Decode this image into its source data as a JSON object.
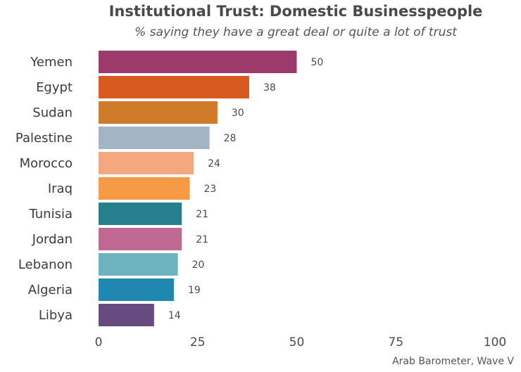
{
  "chart_data": {
    "type": "bar",
    "orientation": "horizontal",
    "title": "Institutional Trust: Domestic Businesspeople",
    "subtitle": "% saying they have a great deal or quite a lot of trust",
    "caption": "Arab Barometer, Wave V",
    "categories": [
      "Yemen",
      "Egypt",
      "Sudan",
      "Palestine",
      "Morocco",
      "Iraq",
      "Tunisia",
      "Jordan",
      "Lebanon",
      "Algeria",
      "Libya"
    ],
    "values": [
      50,
      38,
      30,
      28,
      24,
      23,
      21,
      21,
      20,
      19,
      14
    ],
    "colors": [
      "#9b3a6b",
      "#d95a1e",
      "#cf7b2a",
      "#a3b5c5",
      "#f3a880",
      "#f59b45",
      "#257f8d",
      "#c06a93",
      "#6eb2c0",
      "#2087b1",
      "#674a80"
    ],
    "xlim": [
      0,
      100
    ],
    "xticks": [
      0,
      25,
      50,
      75,
      100
    ],
    "grid": false,
    "legend": "none"
  }
}
